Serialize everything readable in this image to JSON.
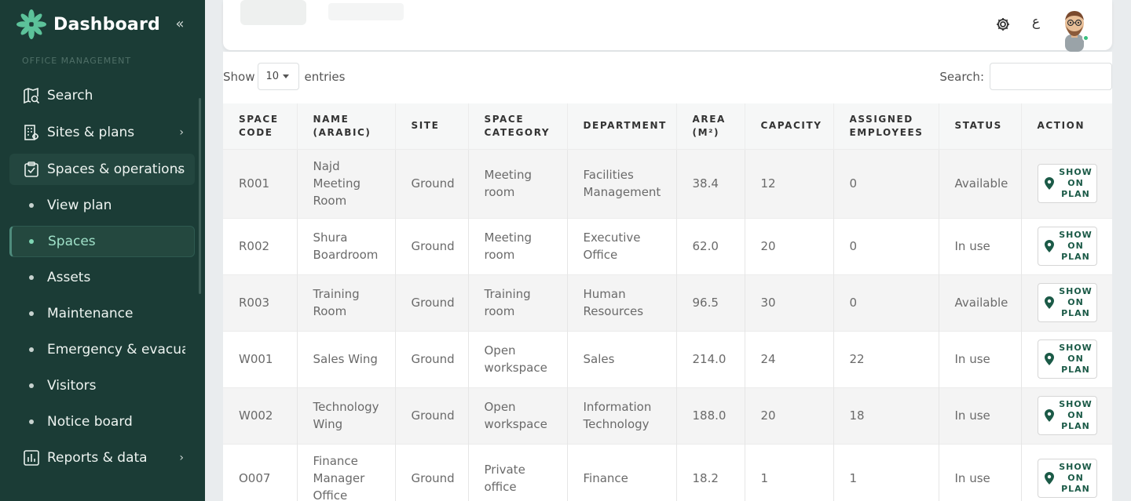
{
  "brand": {
    "title": "Dashboard"
  },
  "sidebar": {
    "section_label": "OFFICE MANAGEMENT",
    "items": [
      {
        "label": "Search",
        "icon": "search-map-icon"
      },
      {
        "label": "Sites & plans",
        "icon": "building-icon"
      },
      {
        "label": "Spaces & operations",
        "icon": "clipboard-check-icon"
      },
      {
        "label": "Reports & data",
        "icon": "chart-icon"
      }
    ],
    "subitems": [
      {
        "label": "View plan"
      },
      {
        "label": "Spaces"
      },
      {
        "label": "Assets"
      },
      {
        "label": "Maintenance"
      },
      {
        "label": "Emergency & evacuation"
      },
      {
        "label": "Visitors"
      },
      {
        "label": "Notice board"
      }
    ]
  },
  "header": {
    "lang_label": "ع"
  },
  "table_controls": {
    "show_label": "Show",
    "entries_value": "10",
    "entries_label": "entries",
    "search_label": "Search:"
  },
  "table": {
    "columns": [
      "Space code",
      "Name (Arabic)",
      "Site",
      "Space category",
      "Department",
      "Area (m²)",
      "Capacity",
      "Assigned employees",
      "Status",
      "Action"
    ],
    "rows": [
      {
        "code": "R001",
        "name": "Najd Meeting Room",
        "site": "Ground",
        "category": "Meeting room",
        "department": "Facilities Management",
        "area": "38.4",
        "capacity": "12",
        "assigned": "0",
        "status": "Available",
        "action": "SHOW ON PLAN"
      },
      {
        "code": "R002",
        "name": "Shura Boardroom",
        "site": "Ground",
        "category": "Meeting room",
        "department": "Executive Office",
        "area": "62.0",
        "capacity": "20",
        "assigned": "0",
        "status": "In use",
        "action": "SHOW ON PLAN"
      },
      {
        "code": "R003",
        "name": "Training Room",
        "site": "Ground",
        "category": "Training room",
        "department": "Human Resources",
        "area": "96.5",
        "capacity": "30",
        "assigned": "0",
        "status": "Available",
        "action": "SHOW ON PLAN"
      },
      {
        "code": "W001",
        "name": "Sales Wing",
        "site": "Ground",
        "category": "Open workspace",
        "department": "Sales",
        "area": "214.0",
        "capacity": "24",
        "assigned": "22",
        "status": "In use",
        "action": "SHOW ON PLAN"
      },
      {
        "code": "W002",
        "name": "Technology Wing",
        "site": "Ground",
        "category": "Open workspace",
        "department": "Information Technology",
        "area": "188.0",
        "capacity": "20",
        "assigned": "18",
        "status": "In use",
        "action": "SHOW ON PLAN"
      },
      {
        "code": "O007",
        "name": "Finance Manager Office",
        "site": "Ground",
        "category": "Private office",
        "department": "Finance",
        "area": "18.2",
        "capacity": "1",
        "assigned": "1",
        "status": "In use",
        "action": "SHOW ON PLAN"
      }
    ]
  },
  "colors": {
    "sidebar_bg": "#1b3c36",
    "accent": "#4f8c7d",
    "brand_green": "#1b5a47",
    "online": "#39c07f"
  }
}
